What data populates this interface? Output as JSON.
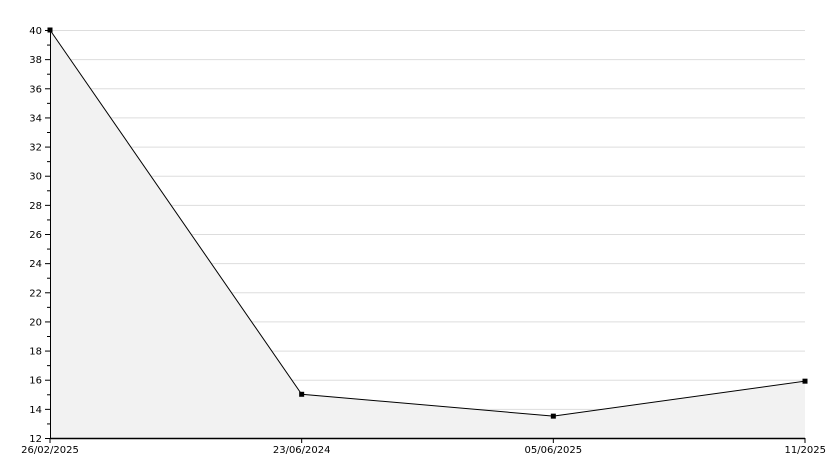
{
  "chart_data": {
    "type": "area",
    "title": "",
    "xlabel": "",
    "ylabel": "",
    "categories": [
      "26/02/2025",
      "23/06/2024",
      "05/06/2025",
      "11/2025"
    ],
    "series": [
      {
        "values": [
          40,
          15,
          13.5,
          15.9
        ]
      }
    ],
    "ylim": [
      12,
      40
    ],
    "yticks": [
      "12",
      "14",
      "16",
      "18",
      "20",
      "22",
      "24",
      "26",
      "28",
      "30",
      "32",
      "34",
      "36",
      "38",
      "40"
    ],
    "grid": true,
    "colors": {
      "line": "#000000",
      "fill": "#f2f2f2",
      "grid": "#dddddd",
      "marker": "#000000"
    }
  }
}
